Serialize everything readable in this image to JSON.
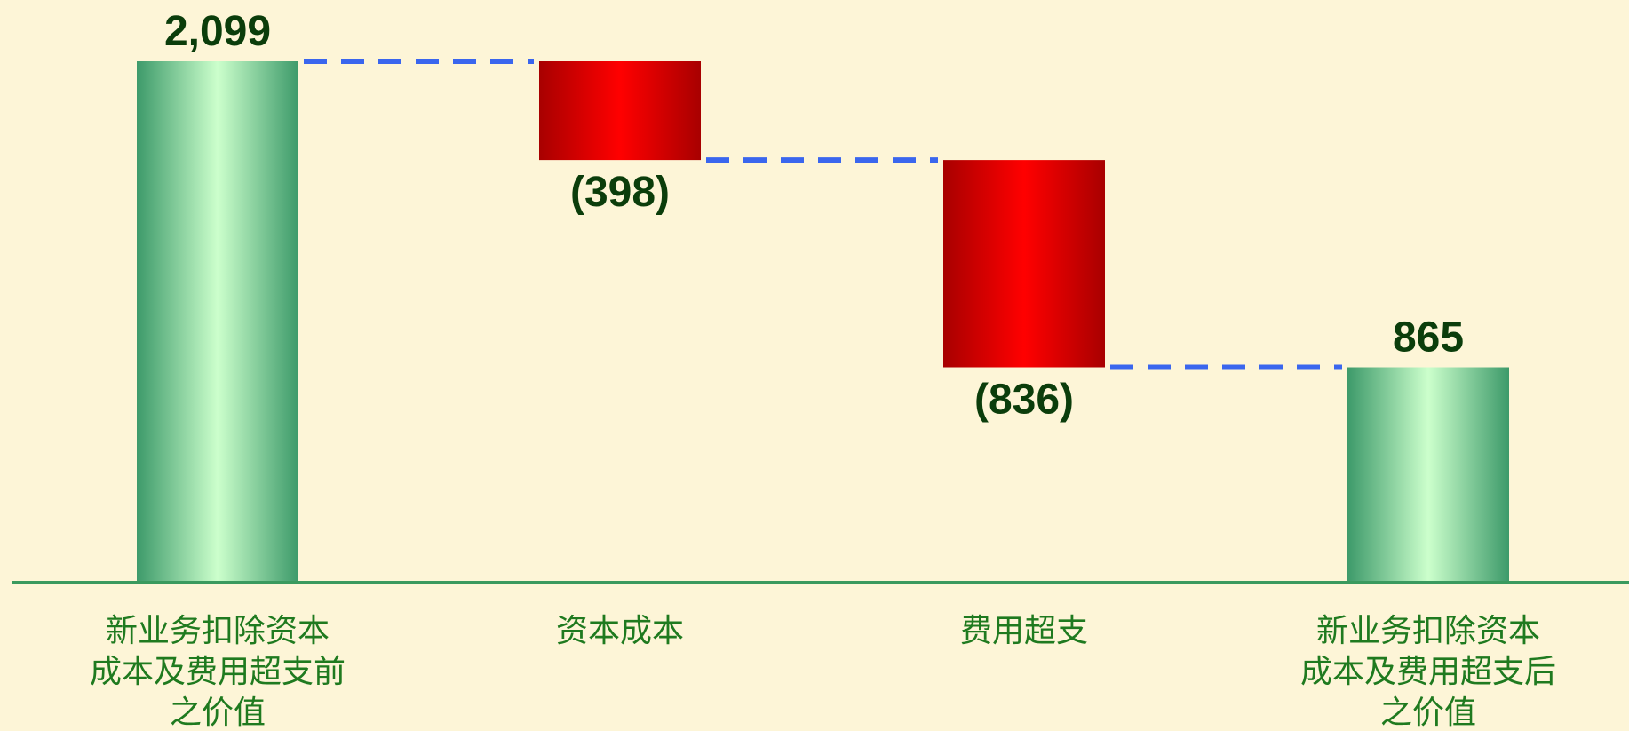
{
  "chart_data": {
    "type": "bar",
    "subtype": "waterfall",
    "categories": [
      [
        "新业务扣除资本",
        "成本及费用超支前",
        "之价值"
      ],
      [
        "资本成本"
      ],
      [
        "费用超支"
      ],
      [
        "新业务扣除资本",
        "成本及费用超支后",
        "之价值"
      ]
    ],
    "values": [
      2099,
      -398,
      -836,
      865
    ],
    "value_labels": [
      "2,099",
      "(398)",
      "(836)",
      "865"
    ],
    "bar_kind": [
      "total",
      "decrease",
      "decrease",
      "total"
    ],
    "ylim": [
      0,
      2099
    ],
    "grid": false,
    "connectors": true,
    "title": "",
    "xlabel": "",
    "ylabel": ""
  },
  "colors": {
    "background": "#fdf5d7",
    "total_bar_edge": "#3d9a6a",
    "total_bar_center": "#ccffcc",
    "decrease_bar_edge": "#a80000",
    "decrease_bar_center": "#ff0000",
    "connector": "#3a66ee",
    "baseline": "#3a9a5e",
    "value_label": "#0b3d0b",
    "category_label": "#1f7a1f"
  }
}
